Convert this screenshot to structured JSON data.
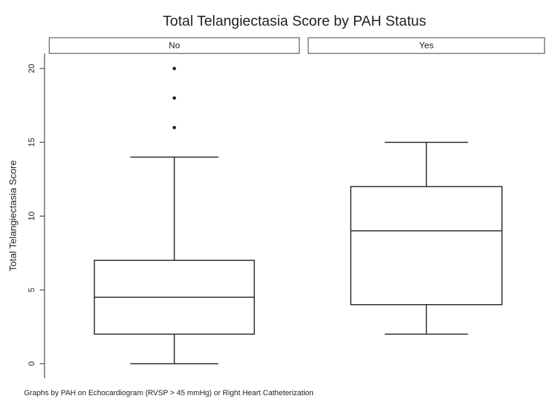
{
  "chart_data": {
    "type": "box",
    "title": "Total Telangiectasia Score by PAH Status",
    "ylabel": "Total Telangiectasia Score",
    "note": "Graphs by PAH on Echocardiogram (RVSP > 45 mmHg) or Right Heart Catheterization",
    "ylim": [
      -1,
      21
    ],
    "yticks": [
      0,
      5,
      10,
      15,
      20
    ],
    "panels": [
      {
        "name": "No",
        "min": 0,
        "q1": 2,
        "median": 4.5,
        "q3": 7,
        "max": 14,
        "outliers": [
          16,
          18,
          20
        ]
      },
      {
        "name": "Yes",
        "min": 2,
        "q1": 4,
        "median": 9,
        "q3": 12,
        "max": 15,
        "outliers": []
      }
    ]
  }
}
